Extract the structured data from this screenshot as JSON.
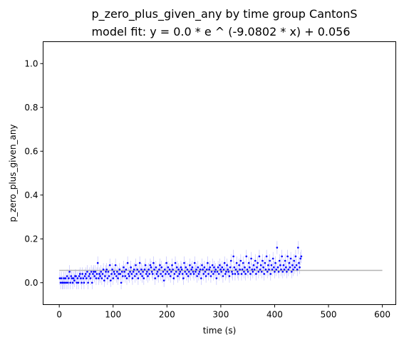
{
  "chart_data": {
    "type": "scatter",
    "title": "p_zero_plus_given_any by time group CantonS",
    "subtitle": "model fit: y = 0.0 * e ^ (-9.0802 * x) + 0.056",
    "xlabel": "time (s)",
    "ylabel": "p_zero_plus_given_any",
    "xlim": [
      -30,
      625
    ],
    "ylim": [
      -0.1,
      1.1
    ],
    "xticks": [
      0,
      100,
      200,
      300,
      400,
      500,
      600
    ],
    "yticks": [
      0.0,
      0.2,
      0.4,
      0.6,
      0.8,
      1.0
    ],
    "xtick_labels": [
      "0",
      "100",
      "200",
      "300",
      "400",
      "500",
      "600"
    ],
    "ytick_labels": [
      "0.0",
      "0.2",
      "0.4",
      "0.6",
      "0.8",
      "1.0"
    ],
    "grid": false,
    "colors": {
      "points": "#0000ff",
      "errorbars": "#9a9aff",
      "fit": "#b4b4b4"
    },
    "fit": {
      "x": [
        0,
        600
      ],
      "y": [
        0.056,
        0.056
      ]
    },
    "series": [
      {
        "x_start": 1,
        "x_step": 1.5,
        "error": 0.03,
        "y": [
          0.02,
          0.0,
          0.02,
          0.0,
          0.0,
          0.02,
          0.0,
          0.02,
          0.0,
          0.03,
          0.0,
          0.02,
          0.05,
          0.0,
          0.03,
          0.02,
          0.0,
          0.02,
          0.01,
          0.03,
          0.03,
          0.0,
          0.02,
          0.0,
          0.03,
          0.04,
          0.02,
          0.0,
          0.04,
          0.02,
          0.0,
          0.03,
          0.04,
          0.02,
          0.05,
          0.0,
          0.03,
          0.04,
          0.02,
          0.05,
          0.0,
          0.04,
          0.05,
          0.03,
          0.05,
          0.02,
          0.04,
          0.09,
          0.02,
          0.04,
          0.03,
          0.05,
          0.02,
          0.04,
          0.06,
          0.01,
          0.03,
          0.05,
          0.06,
          0.02,
          0.05,
          0.03,
          0.08,
          0.01,
          0.04,
          0.06,
          0.02,
          0.05,
          0.04,
          0.08,
          0.03,
          0.05,
          0.02,
          0.04,
          0.06,
          0.04,
          0.0,
          0.05,
          0.03,
          0.07,
          0.05,
          0.03,
          0.06,
          0.02,
          0.09,
          0.04,
          0.03,
          0.05,
          0.07,
          0.04,
          0.02,
          0.05,
          0.06,
          0.03,
          0.08,
          0.04,
          0.06,
          0.02,
          0.05,
          0.09,
          0.04,
          0.06,
          0.03,
          0.05,
          0.02,
          0.06,
          0.08,
          0.04,
          0.05,
          0.03,
          0.06,
          0.04,
          0.08,
          0.07,
          0.05,
          0.04,
          0.09,
          0.06,
          0.02,
          0.07,
          0.04,
          0.05,
          0.03,
          0.06,
          0.08,
          0.04,
          0.07,
          0.03,
          0.05,
          0.01,
          0.06,
          0.04,
          0.09,
          0.05,
          0.07,
          0.04,
          0.06,
          0.03,
          0.05,
          0.08,
          0.06,
          0.02,
          0.04,
          0.09,
          0.05,
          0.07,
          0.03,
          0.06,
          0.04,
          0.05,
          0.07,
          0.06,
          0.04,
          0.02,
          0.09,
          0.05,
          0.07,
          0.04,
          0.06,
          0.03,
          0.05,
          0.08,
          0.04,
          0.06,
          0.07,
          0.05,
          0.04,
          0.09,
          0.05,
          0.06,
          0.03,
          0.07,
          0.04,
          0.05,
          0.06,
          0.02,
          0.08,
          0.06,
          0.04,
          0.07,
          0.05,
          0.03,
          0.06,
          0.09,
          0.04,
          0.06,
          0.07,
          0.03,
          0.05,
          0.08,
          0.04,
          0.07,
          0.05,
          0.06,
          0.02,
          0.05,
          0.07,
          0.04,
          0.08,
          0.06,
          0.05,
          0.07,
          0.03,
          0.06,
          0.09,
          0.04,
          0.05,
          0.08,
          0.06,
          0.05,
          0.03,
          0.07,
          0.1,
          0.05,
          0.04,
          0.12,
          0.07,
          0.04,
          0.06,
          0.09,
          0.05,
          0.04,
          0.08,
          0.06,
          0.1,
          0.04,
          0.06,
          0.09,
          0.05,
          0.07,
          0.04,
          0.12,
          0.06,
          0.05,
          0.09,
          0.07,
          0.04,
          0.11,
          0.06,
          0.05,
          0.08,
          0.06,
          0.1,
          0.04,
          0.07,
          0.09,
          0.05,
          0.12,
          0.06,
          0.08,
          0.05,
          0.1,
          0.07,
          0.04,
          0.09,
          0.06,
          0.12,
          0.05,
          0.08,
          0.06,
          0.1,
          0.04,
          0.08,
          0.06,
          0.11,
          0.07,
          0.05,
          0.09,
          0.06,
          0.16,
          0.07,
          0.05,
          0.1,
          0.08,
          0.06,
          0.12,
          0.05,
          0.08,
          0.06,
          0.1,
          0.07,
          0.05,
          0.12,
          0.06,
          0.09,
          0.07,
          0.11,
          0.05,
          0.08,
          0.06,
          0.1,
          0.07,
          0.12,
          0.08,
          0.06,
          0.16,
          0.09,
          0.07,
          0.11,
          0.12
        ]
      }
    ]
  }
}
